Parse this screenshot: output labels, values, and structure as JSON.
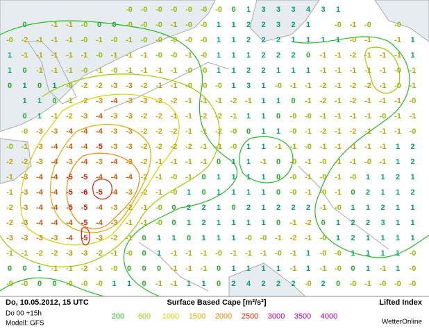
{
  "header": {
    "date": "Do, 10.05.2012, 15 UTC",
    "run": "Do 00 +15h",
    "model": "Modell: GFS",
    "title": "Surface Based Cape [m²/s²]",
    "field": "Lifted Index",
    "brand": "WetterOnline"
  },
  "legend": [
    {
      "value": 200,
      "color": "#22bb22"
    },
    {
      "value": 600,
      "color": "#99cc00"
    },
    {
      "value": 1000,
      "color": "#d4d400"
    },
    {
      "value": 1500,
      "color": "#e0a800"
    },
    {
      "value": 2000,
      "color": "#ee8800"
    },
    {
      "value": 2500,
      "color": "#dd2200"
    },
    {
      "value": 3000,
      "color": "#bb0088"
    },
    {
      "value": 3500,
      "color": "#aa00bb"
    },
    {
      "value": 4000,
      "color": "#8800cc"
    }
  ],
  "grid": [
    [
      null,
      null,
      null,
      null,
      null,
      null,
      null,
      null,
      "-0",
      "-0",
      "-0",
      "-0",
      "-0",
      "-0",
      "-0",
      "0",
      "1",
      "3",
      "3",
      "3",
      "4",
      "3",
      "1",
      null,
      null,
      null,
      null,
      null
    ],
    [
      null,
      "0",
      null,
      "-1",
      "-1",
      "-0",
      "0",
      "0",
      "-0",
      "-0",
      "-0",
      "-1",
      "-0",
      "-0",
      "1",
      "1",
      "2",
      "2",
      "3",
      "2",
      "1",
      null,
      "-0",
      "-1",
      "-0",
      null,
      "-0",
      null
    ],
    [
      "-0",
      "-2",
      "-1",
      "-1",
      "-1",
      "-0",
      "-1",
      "-0",
      "-1",
      "-0",
      "-0",
      "-0",
      "-0",
      "-0",
      "1",
      "1",
      "2",
      "2",
      "2",
      "1",
      "1",
      "1",
      "1",
      "-0",
      "-1",
      null,
      "-1",
      "1"
    ],
    [
      "1",
      "-1",
      "-1",
      "-1",
      "-1",
      "-1",
      "-0",
      "-1",
      "-1",
      "-1",
      "-0",
      "-0",
      "-1",
      "-0",
      "1",
      "1",
      "1",
      "2",
      "2",
      "2",
      "0",
      "-1",
      "-1",
      "-2",
      "-1",
      "-1",
      "-1",
      "1"
    ],
    [
      "1",
      "0",
      "-1",
      "-1",
      "-1",
      "-0",
      "-1",
      "-0",
      "-1",
      "-1",
      "-1",
      "-1",
      "-0",
      "-0",
      "1",
      "1",
      "2",
      "2",
      "1",
      "1",
      "1",
      "-1",
      "-1",
      "-1",
      "-1",
      "-1",
      "-0",
      "-1"
    ],
    [
      "0",
      "1",
      "0",
      "1",
      "-0",
      "-2",
      "-2",
      "-3",
      "-3",
      "-2",
      "-1",
      "-1",
      "-0",
      "-0",
      "-0",
      "1",
      "3",
      "1",
      "-0",
      "-1",
      "-1",
      "-2",
      "-1",
      "-2",
      "-2",
      "-1",
      "-0",
      "-1"
    ],
    [
      null,
      "1",
      "1",
      "0",
      "-1",
      "-2",
      "-3",
      "-4",
      "-3",
      "-3",
      "-2",
      "-2",
      "-1",
      "-1",
      "-1",
      "-2",
      "-1",
      "1",
      "1",
      "0",
      "-1",
      "-2",
      "-1",
      "-2",
      "-1",
      "-1",
      "-1",
      "-0"
    ],
    [
      null,
      "0",
      "1",
      "-1",
      "-2",
      "-3",
      "-4",
      "-3",
      "-3",
      "-2",
      "-2",
      "-1",
      "-1",
      "-2",
      "-2",
      "-1",
      "1",
      "1",
      "0",
      "-0",
      "-0",
      "-1",
      "-1",
      "-1",
      "-1",
      "-0",
      "-1",
      "-1"
    ],
    [
      null,
      "-0",
      "-3",
      "-3",
      "-4",
      "-4",
      "-4",
      "-3",
      "-3",
      "-2",
      "-2",
      "-2",
      "-1",
      "-1",
      "-2",
      "-0",
      "0",
      "1",
      "1",
      "-0",
      "-1",
      "-2",
      "-1",
      "-2",
      "-1",
      "-1",
      "-1",
      "-0"
    ],
    [
      "-0",
      "-1",
      "-3",
      "-4",
      "-4",
      "-4",
      "-5",
      "-3",
      "-3",
      "-2",
      "-2",
      "-2",
      "-2",
      "-1",
      "-1",
      "-0",
      "1",
      "1",
      "-1",
      "-1",
      "-0",
      "-1",
      "-1",
      "-1",
      "-1",
      "-1",
      "1",
      "2"
    ],
    [
      "-2",
      "-2",
      "-3",
      "-4",
      "-3",
      "-4",
      "-3",
      "-4",
      "-3",
      "-2",
      "-1",
      "-1",
      "-1",
      "-1",
      "0",
      "1",
      "1",
      "-1",
      "0",
      "-0",
      "-1",
      "-0",
      "-1",
      "-1",
      "-0",
      "-1",
      "1",
      "2"
    ],
    [
      "-1",
      "-3",
      "-4",
      "-4",
      "-5",
      "-5",
      "-4",
      "-4",
      "-4",
      "-2",
      "-1",
      "-0",
      "-1",
      "0",
      "1",
      "1",
      "1",
      "1",
      "0",
      "-0",
      "-1",
      "-0",
      "-1",
      "-0",
      "1",
      "1",
      "2",
      "1"
    ],
    [
      "-1",
      "-3",
      "-4",
      "-4",
      "-5",
      "-6",
      "-5",
      "-4",
      "-3",
      "-2",
      "-1",
      "-0",
      "1",
      "0",
      "1",
      "1",
      "1",
      "1",
      "0",
      "-0",
      "-1",
      "-0",
      "-1",
      "0",
      "2",
      "1",
      "1",
      "2"
    ],
    [
      "-2",
      "-3",
      "-4",
      "-4",
      "-5",
      "-5",
      "-4",
      "-3",
      "-2",
      "-1",
      "-0",
      "0",
      "2",
      "2",
      "1",
      "0",
      "2",
      "1",
      "2",
      "2",
      "2",
      "-1",
      "-0",
      "1",
      "1",
      "2",
      "1",
      "1"
    ],
    [
      "-2",
      "-3",
      "-4",
      "-4",
      "-4",
      "-5",
      "-4",
      "-3",
      "-1",
      "-1",
      "-0",
      "0",
      "1",
      "2",
      "1",
      "1",
      "1",
      "1",
      "0",
      "-1",
      "-2",
      "0",
      "1",
      "2",
      "2",
      "3",
      "1",
      "1"
    ],
    [
      "-3",
      "-3",
      "-3",
      "-3",
      "-4",
      "-5",
      "-3",
      "-2",
      "-1",
      "0",
      "1",
      "1",
      "0",
      "1",
      "1",
      "1",
      "-0",
      "-0",
      "-1",
      "-2",
      "-1",
      "-0",
      "1",
      "2",
      "1",
      "1",
      "1",
      "1"
    ],
    [
      "-1",
      "-1",
      "-2",
      "-2",
      "-3",
      "-3",
      "-2",
      "-1",
      "-0",
      "0",
      "1",
      "-1",
      "-1",
      "-1",
      "-0",
      "-1",
      "-1",
      "-1",
      "-0",
      "-1",
      "1",
      "-0",
      "-0",
      "1",
      "1",
      "1",
      "1",
      "-0"
    ],
    [
      "0",
      "0",
      "1",
      "-1",
      "-1",
      "-2",
      "-1",
      "-0",
      "0",
      "0",
      "0",
      "-1",
      "-1",
      "-1",
      "0",
      "1",
      "1",
      "1",
      "1",
      "-1",
      "1",
      "-1",
      "-0",
      "0",
      "1",
      "-1",
      "1",
      "-0"
    ],
    [
      "-0",
      "-0",
      "0",
      "0",
      "-0",
      "-0",
      "-0",
      "1",
      "1",
      "0",
      "-1",
      "-1",
      "1",
      "1",
      "0",
      "2",
      "4",
      "2",
      "2",
      "2",
      "-0",
      "2",
      "0",
      "-0",
      "-1",
      "-0",
      "-0",
      "-0"
    ]
  ]
}
